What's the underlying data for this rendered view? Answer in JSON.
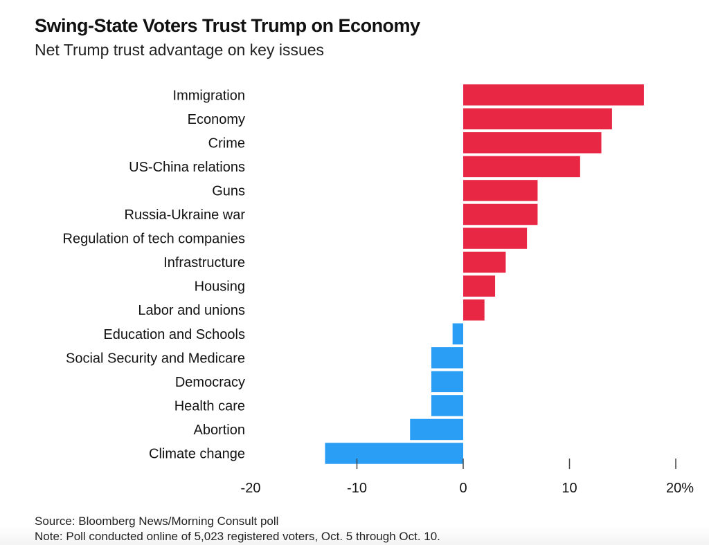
{
  "chart_data": {
    "type": "bar",
    "orientation": "horizontal",
    "title": "Swing-State Voters Trust Trump on Economy",
    "subtitle": "Net Trump trust advantage on key issues",
    "categories": [
      "Immigration",
      "Economy",
      "Crime",
      "US-China relations",
      "Guns",
      "Russia-Ukraine war",
      "Regulation of tech companies",
      "Infrastructure",
      "Housing",
      "Labor and unions",
      "Education and Schools",
      "Social Security and Medicare",
      "Democracy",
      "Health care",
      "Abortion",
      "Climate change"
    ],
    "values": [
      17,
      14,
      13,
      11,
      7,
      7,
      6,
      4,
      3,
      2,
      -1,
      -3,
      -3,
      -3,
      -5,
      -13
    ],
    "xlim": [
      -20,
      20
    ],
    "xticks": [
      -20,
      -10,
      0,
      10,
      20
    ],
    "xtick_labels": [
      "-20",
      "-10",
      "0",
      "10",
      "20%"
    ],
    "grid": false,
    "colors": {
      "positive": "#e82744",
      "negative": "#2a9df4"
    },
    "source": "Source: Bloomberg News/Morning Consult poll",
    "note": "Note: Poll conducted online of 5,023 registered voters, Oct. 5 through Oct. 10."
  }
}
